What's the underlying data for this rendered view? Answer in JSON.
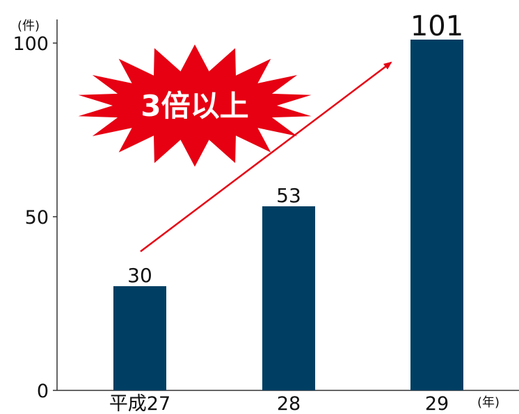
{
  "chart_data": {
    "type": "bar",
    "categories": [
      "平成27",
      "28",
      "29"
    ],
    "values": [
      30,
      53,
      101
    ],
    "data_labels": [
      "30",
      "53",
      "101"
    ],
    "y_unit": "(件)",
    "x_unit": "(年)",
    "y_ticks": [
      0,
      50,
      100
    ],
    "ylim": [
      0,
      108
    ],
    "grid": false,
    "bar_color": "#003f63",
    "annotation": {
      "text": "3倍以上",
      "fill": "#e60012",
      "text_color": "#ffffff",
      "arrow_color": "#e60012"
    }
  }
}
